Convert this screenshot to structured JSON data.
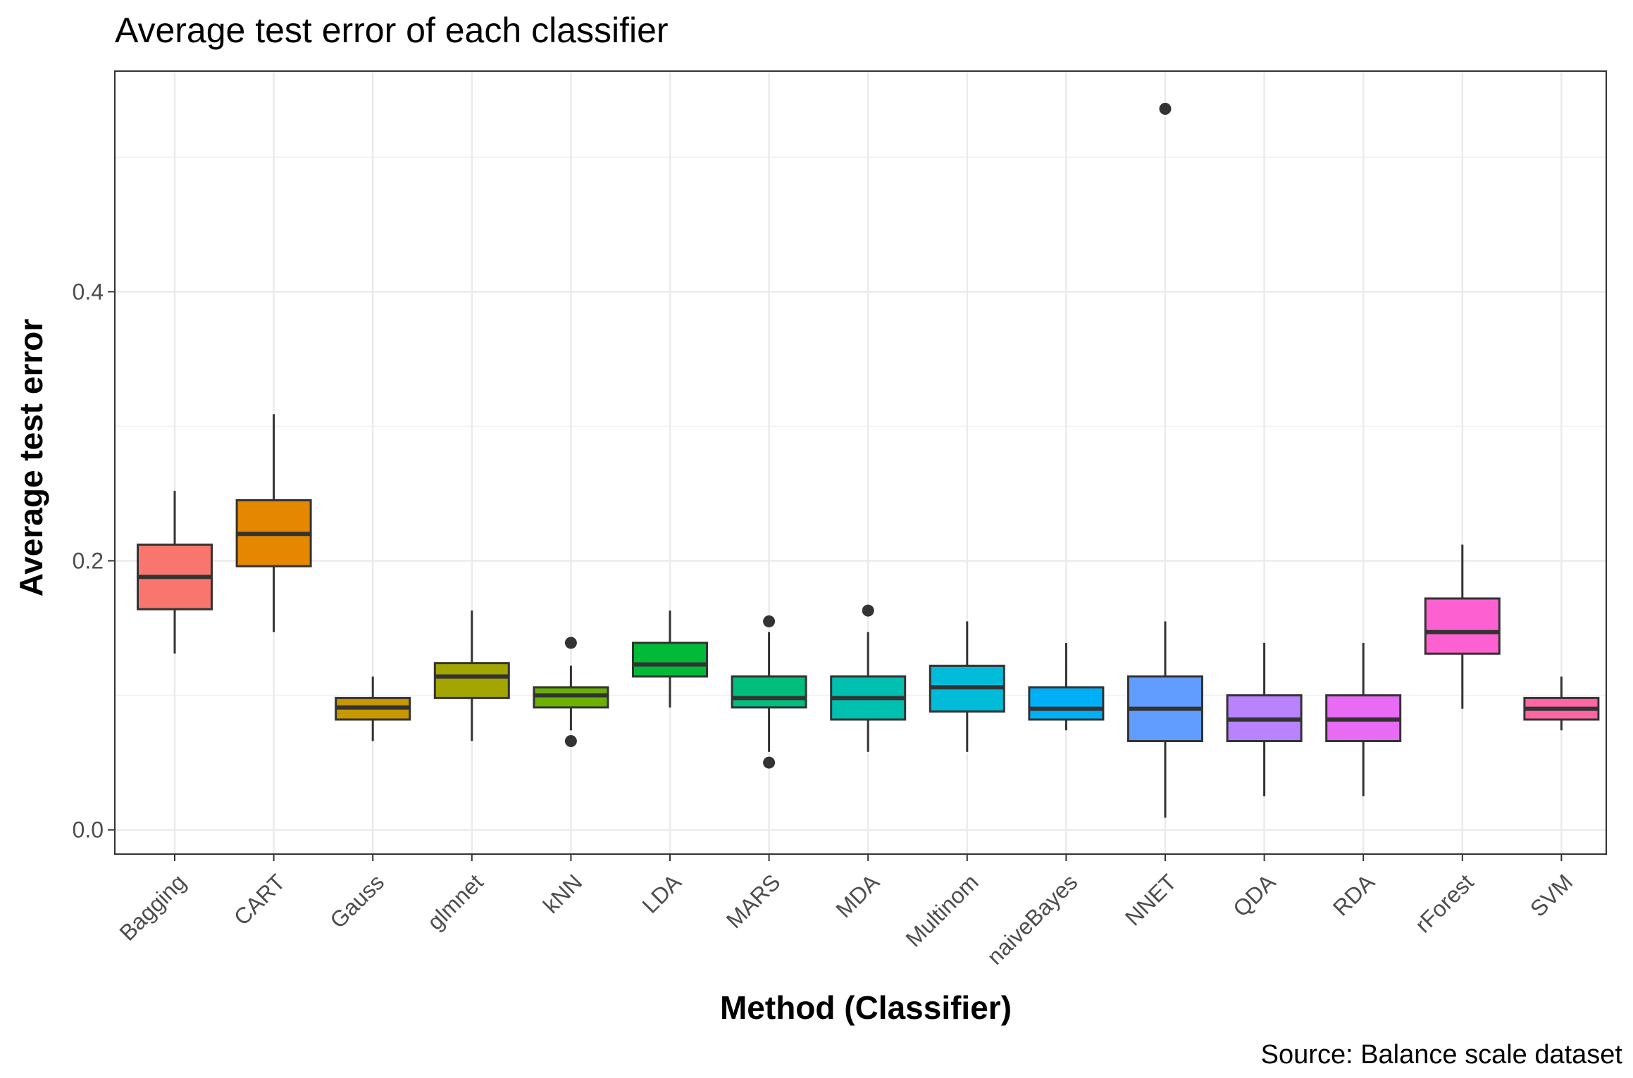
{
  "chart_data": {
    "type": "boxplot",
    "title": "Average test error of each classifier",
    "xlabel": "Method (Classifier)",
    "ylabel": "Average test error",
    "caption": "Source: Balance scale dataset",
    "ylim": [
      -0.018,
      0.564
    ],
    "yticks": [
      0.0,
      0.2,
      0.4
    ],
    "ytick_labels": [
      "0.0",
      "0.2",
      "0.4"
    ],
    "grid": true,
    "legend": "none",
    "categories": [
      "Bagging",
      "CART",
      "Gauss",
      "glmnet",
      "kNN",
      "LDA",
      "MARS",
      "MDA",
      "Multinom",
      "naiveBayes",
      "NNET",
      "QDA",
      "RDA",
      "rForest",
      "SVM"
    ],
    "boxes": [
      {
        "name": "Bagging",
        "color": "#F8766D",
        "lower_whisker": 0.131,
        "q1": 0.164,
        "median": 0.188,
        "q3": 0.212,
        "upper_whisker": 0.252,
        "outliers": []
      },
      {
        "name": "CART",
        "color": "#E58700",
        "lower_whisker": 0.147,
        "q1": 0.196,
        "median": 0.22,
        "q3": 0.245,
        "upper_whisker": 0.309,
        "outliers": []
      },
      {
        "name": "Gauss",
        "color": "#C99800",
        "lower_whisker": 0.066,
        "q1": 0.082,
        "median": 0.091,
        "q3": 0.098,
        "upper_whisker": 0.114,
        "outliers": []
      },
      {
        "name": "glmnet",
        "color": "#A3A500",
        "lower_whisker": 0.066,
        "q1": 0.098,
        "median": 0.114,
        "q3": 0.124,
        "upper_whisker": 0.163,
        "outliers": []
      },
      {
        "name": "kNN",
        "color": "#6BB100",
        "lower_whisker": 0.074,
        "q1": 0.091,
        "median": 0.1,
        "q3": 0.106,
        "upper_whisker": 0.122,
        "outliers": [
          0.139,
          0.066
        ]
      },
      {
        "name": "LDA",
        "color": "#00BA38",
        "lower_whisker": 0.091,
        "q1": 0.114,
        "median": 0.123,
        "q3": 0.139,
        "upper_whisker": 0.163,
        "outliers": []
      },
      {
        "name": "MARS",
        "color": "#00BF7D",
        "lower_whisker": 0.058,
        "q1": 0.091,
        "median": 0.098,
        "q3": 0.114,
        "upper_whisker": 0.147,
        "outliers": [
          0.155,
          0.05
        ]
      },
      {
        "name": "MDA",
        "color": "#00C0AF",
        "lower_whisker": 0.058,
        "q1": 0.082,
        "median": 0.098,
        "q3": 0.114,
        "upper_whisker": 0.147,
        "outliers": [
          0.163
        ]
      },
      {
        "name": "Multinom",
        "color": "#00BCD8",
        "lower_whisker": 0.058,
        "q1": 0.088,
        "median": 0.106,
        "q3": 0.122,
        "upper_whisker": 0.155,
        "outliers": []
      },
      {
        "name": "naiveBayes",
        "color": "#00B0F6",
        "lower_whisker": 0.074,
        "q1": 0.082,
        "median": 0.09,
        "q3": 0.106,
        "upper_whisker": 0.139,
        "outliers": []
      },
      {
        "name": "NNET",
        "color": "#619CFF",
        "lower_whisker": 0.009,
        "q1": 0.066,
        "median": 0.09,
        "q3": 0.114,
        "upper_whisker": 0.155,
        "outliers": [
          0.536
        ]
      },
      {
        "name": "QDA",
        "color": "#B983FF",
        "lower_whisker": 0.025,
        "q1": 0.066,
        "median": 0.082,
        "q3": 0.1,
        "upper_whisker": 0.139,
        "outliers": []
      },
      {
        "name": "RDA",
        "color": "#E76BF3",
        "lower_whisker": 0.025,
        "q1": 0.066,
        "median": 0.082,
        "q3": 0.1,
        "upper_whisker": 0.139,
        "outliers": []
      },
      {
        "name": "rForest",
        "color": "#FD61D1",
        "lower_whisker": 0.09,
        "q1": 0.131,
        "median": 0.147,
        "q3": 0.172,
        "upper_whisker": 0.212,
        "outliers": []
      },
      {
        "name": "SVM",
        "color": "#FF67A4",
        "lower_whisker": 0.074,
        "q1": 0.082,
        "median": 0.09,
        "q3": 0.098,
        "upper_whisker": 0.114,
        "outliers": []
      }
    ]
  }
}
